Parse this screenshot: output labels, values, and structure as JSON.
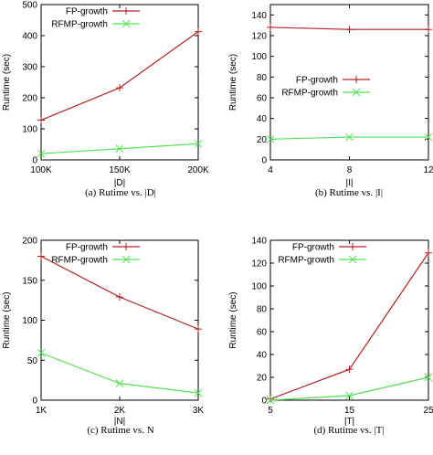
{
  "chart_data": [
    {
      "type": "line",
      "caption": "(a) Rutime vs. |D|",
      "xlabel": "|D|",
      "ylabel": "Runtime (sec)",
      "categories": [
        "100K",
        "150K",
        "200K"
      ],
      "x": [
        100,
        150,
        200
      ],
      "xlim": [
        100,
        200
      ],
      "ylim": [
        0,
        500
      ],
      "yticks": [
        0,
        100,
        200,
        300,
        400,
        500
      ],
      "legend_position": "top-right",
      "series": [
        {
          "name": "FP-growth",
          "color": "#b22222",
          "marker": "plus",
          "values": [
            128,
            232,
            413
          ]
        },
        {
          "name": "RFMP-growth",
          "color": "#55e055",
          "marker": "cross",
          "values": [
            20,
            36,
            52
          ]
        }
      ]
    },
    {
      "type": "line",
      "caption": "(b)    Rutime vs. |I|",
      "xlabel": "|I|",
      "ylabel": "Runtime (sec)",
      "categories": [
        "4",
        "8",
        "12"
      ],
      "x": [
        4,
        8,
        12
      ],
      "xlim": [
        4,
        12
      ],
      "ylim": [
        0,
        150
      ],
      "yticks": [
        0,
        20,
        40,
        60,
        80,
        100,
        120,
        140
      ],
      "legend_position": "right",
      "series": [
        {
          "name": "FP-growth",
          "color": "#b22222",
          "marker": "plus",
          "values": [
            128,
            126,
            126
          ]
        },
        {
          "name": "RFMP-growth",
          "color": "#55e055",
          "marker": "cross",
          "values": [
            20,
            22,
            22
          ]
        }
      ]
    },
    {
      "type": "line",
      "caption": "(c) Rutime vs. N",
      "xlabel": "|N|",
      "ylabel": "Runtime (sec)",
      "categories": [
        "1K",
        "2K",
        "3K"
      ],
      "x": [
        1,
        2,
        3
      ],
      "xlim": [
        1,
        3
      ],
      "ylim": [
        0,
        200
      ],
      "yticks": [
        0,
        50,
        100,
        150,
        200
      ],
      "legend_position": "top-right",
      "series": [
        {
          "name": "FP-growth",
          "color": "#b22222",
          "marker": "plus",
          "values": [
            180,
            129,
            89
          ]
        },
        {
          "name": "RFMP-growth",
          "color": "#55e055",
          "marker": "cross",
          "values": [
            59,
            21,
            9
          ]
        }
      ]
    },
    {
      "type": "line",
      "caption": "(d)    Rutime vs. |T|",
      "xlabel": "|T|",
      "ylabel": "Runtime (sec)",
      "categories": [
        "5",
        "15",
        "25"
      ],
      "x": [
        5,
        15,
        25
      ],
      "xlim": [
        5,
        25
      ],
      "ylim": [
        0,
        140
      ],
      "yticks": [
        0,
        20,
        40,
        60,
        80,
        100,
        120,
        140
      ],
      "legend_position": "top-left",
      "series": [
        {
          "name": "FP-growth",
          "color": "#b22222",
          "marker": "plus",
          "values": [
            1,
            27,
            129
          ]
        },
        {
          "name": "RFMP-growth",
          "color": "#55e055",
          "marker": "cross",
          "values": [
            0,
            4,
            20
          ]
        }
      ]
    }
  ]
}
